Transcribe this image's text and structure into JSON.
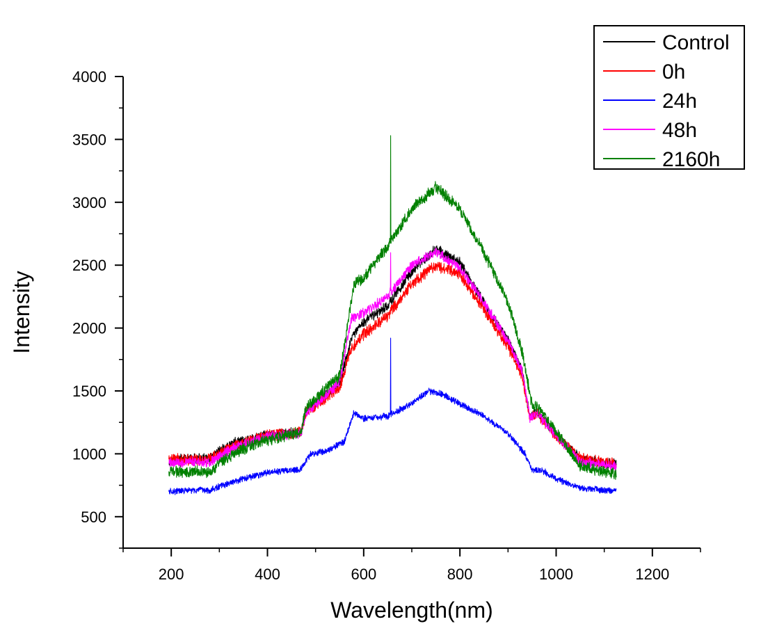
{
  "chart_data": {
    "type": "line",
    "title": "",
    "xlabel": "Wavelength(nm)",
    "ylabel": "Intensity",
    "xlim": [
      100,
      1300
    ],
    "ylim": [
      250,
      4000
    ],
    "x_ticks": [
      200,
      400,
      600,
      800,
      1000,
      1200
    ],
    "y_ticks": [
      500,
      1000,
      1500,
      2000,
      2500,
      3000,
      3500,
      4000
    ],
    "grid": false,
    "legend_position": "top-right",
    "series": [
      {
        "name": "Control",
        "color": "#000000",
        "noise": 35,
        "x": [
          195,
          250,
          280,
          300,
          330,
          360,
          400,
          470,
          480,
          500,
          550,
          575,
          600,
          650,
          700,
          750,
          800,
          850,
          900,
          930,
          945,
          960,
          1000,
          1050,
          1100,
          1125
        ],
        "y": [
          950,
          960,
          960,
          1020,
          1090,
          1110,
          1150,
          1170,
          1340,
          1400,
          1560,
          1920,
          2050,
          2180,
          2450,
          2630,
          2520,
          2200,
          1900,
          1650,
          1300,
          1340,
          1150,
          960,
          930,
          920
        ]
      },
      {
        "name": "0h",
        "color": "#ff0000",
        "noise": 40,
        "x": [
          195,
          250,
          280,
          300,
          330,
          360,
          400,
          470,
          480,
          500,
          550,
          575,
          600,
          650,
          700,
          750,
          800,
          850,
          900,
          930,
          945,
          960,
          1000,
          1050,
          1100,
          1125
        ],
        "y": [
          960,
          955,
          950,
          1000,
          1070,
          1100,
          1150,
          1170,
          1330,
          1380,
          1530,
          1850,
          1950,
          2100,
          2350,
          2500,
          2430,
          2150,
          1850,
          1620,
          1290,
          1320,
          1140,
          960,
          930,
          930
        ]
      },
      {
        "name": "24h",
        "color": "#0000ff",
        "noise": 22,
        "x": [
          195,
          250,
          280,
          300,
          350,
          400,
          470,
          490,
          520,
          560,
          580,
          600,
          650,
          700,
          735,
          760,
          800,
          850,
          900,
          935,
          950,
          970,
          1000,
          1050,
          1100,
          1125
        ],
        "y": [
          700,
          710,
          710,
          740,
          800,
          850,
          880,
          1000,
          1020,
          1100,
          1330,
          1280,
          1300,
          1400,
          1500,
          1480,
          1400,
          1300,
          1160,
          1000,
          870,
          870,
          800,
          730,
          710,
          705
        ]
      },
      {
        "name": "48h",
        "color": "#ff00ff",
        "noise": 35,
        "x": [
          195,
          250,
          280,
          300,
          330,
          360,
          400,
          470,
          480,
          500,
          550,
          575,
          600,
          650,
          700,
          750,
          800,
          850,
          900,
          930,
          945,
          960,
          1000,
          1050,
          1100,
          1125
        ],
        "y": [
          930,
          935,
          930,
          980,
          1050,
          1090,
          1140,
          1160,
          1320,
          1390,
          1570,
          2080,
          2120,
          2250,
          2500,
          2600,
          2480,
          2200,
          1900,
          1650,
          1290,
          1320,
          1150,
          940,
          910,
          900
        ]
      },
      {
        "name": "2160h",
        "color": "#008000",
        "noise": 40,
        "x": [
          195,
          250,
          280,
          300,
          330,
          360,
          400,
          470,
          480,
          500,
          550,
          570,
          580,
          600,
          650,
          700,
          750,
          800,
          850,
          900,
          930,
          950,
          960,
          1000,
          1050,
          1100,
          1125
        ],
        "y": [
          860,
          860,
          860,
          920,
          1000,
          1060,
          1110,
          1170,
          1370,
          1440,
          1620,
          2100,
          2350,
          2400,
          2650,
          2950,
          3120,
          2950,
          2600,
          2200,
          1800,
          1380,
          1380,
          1180,
          900,
          860,
          840
        ]
      }
    ],
    "spikes": [
      {
        "series": "2160h",
        "x": 656,
        "y": 3530
      },
      {
        "series": "48h",
        "x": 656,
        "y": 2600
      },
      {
        "series": "24h",
        "x": 656,
        "y": 1920
      }
    ]
  }
}
